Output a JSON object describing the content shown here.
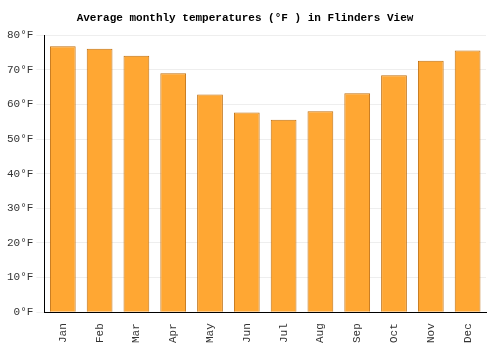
{
  "chart_data": {
    "type": "bar",
    "title": "Average monthly temperatures (°F ) in Flinders View",
    "categories": [
      "Jan",
      "Feb",
      "Mar",
      "Apr",
      "May",
      "Jun",
      "Jul",
      "Aug",
      "Sep",
      "Oct",
      "Nov",
      "Dec"
    ],
    "values": [
      76.8,
      76.1,
      74.1,
      69.0,
      62.9,
      57.7,
      55.6,
      58.0,
      63.2,
      68.4,
      72.6,
      75.6
    ],
    "color": "#ffa733",
    "ylim": [
      0,
      80
    ],
    "yticks": [
      {
        "value": 0,
        "label": "0°F"
      },
      {
        "value": 10,
        "label": "10°F"
      },
      {
        "value": 20,
        "label": "20°F"
      },
      {
        "value": 30,
        "label": "30°F"
      },
      {
        "value": 40,
        "label": "40°F"
      },
      {
        "value": 50,
        "label": "50°F"
      },
      {
        "value": 60,
        "label": "60°F"
      },
      {
        "value": 70,
        "label": "70°F"
      },
      {
        "value": 80,
        "label": "80°F"
      }
    ],
    "grid": true
  }
}
